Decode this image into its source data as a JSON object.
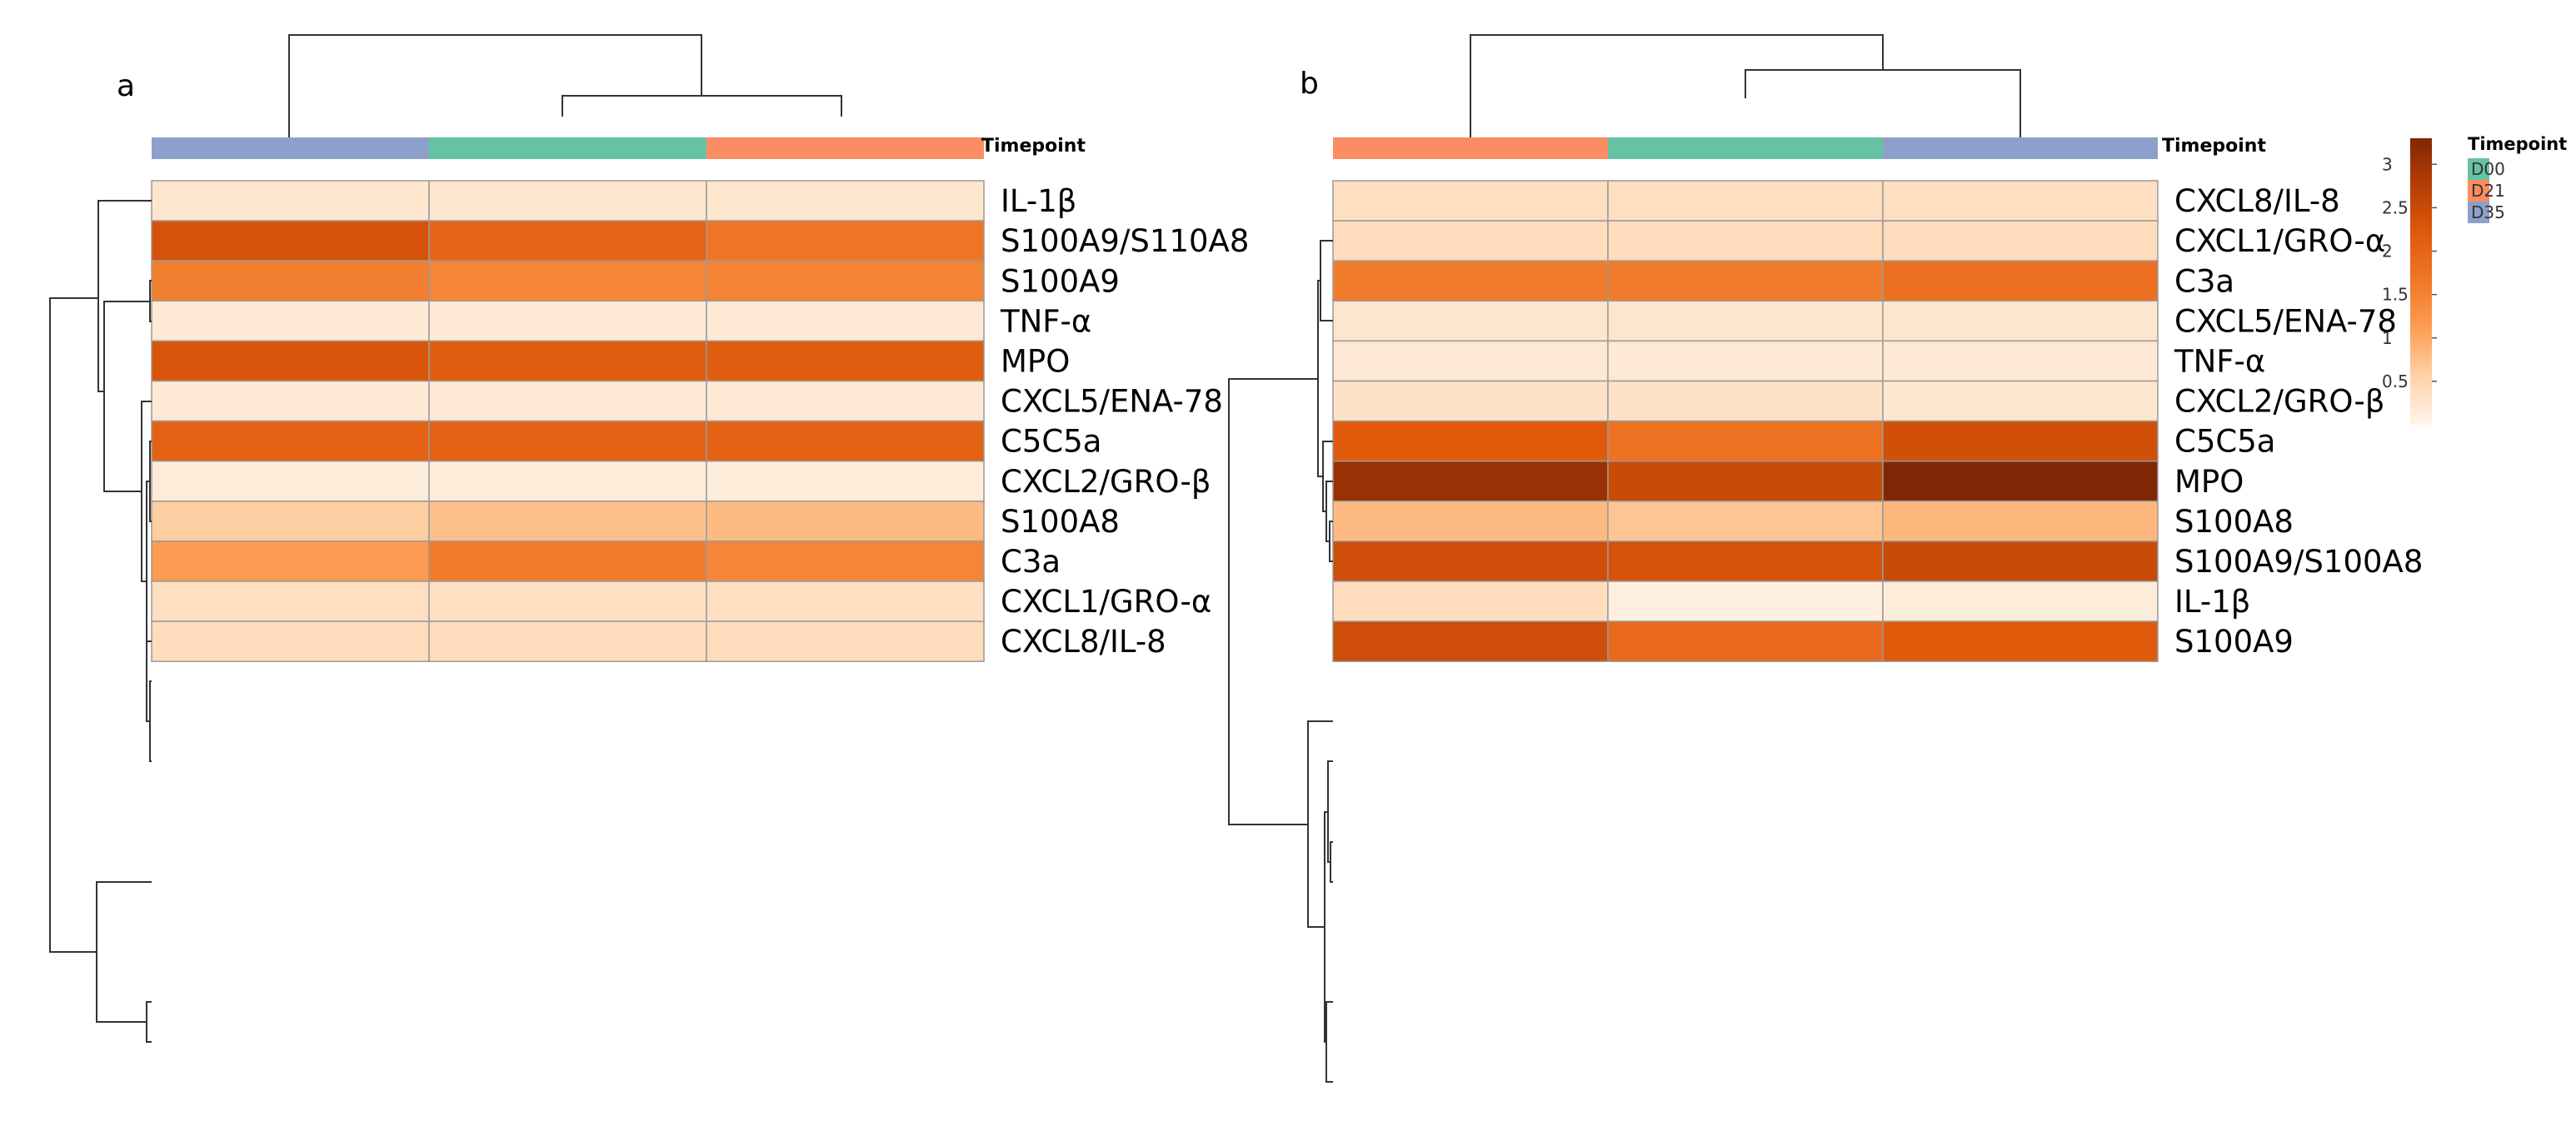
{
  "chart_data": {
    "type": "heatmap",
    "colorscale": [
      "#fff5ec",
      "#fdd3aa",
      "#fd9f55",
      "#f07828",
      "#e05a0c",
      "#b63e05",
      "#7f2704"
    ],
    "colorbar": {
      "min": 0,
      "max": 3.3,
      "ticks": [
        "3",
        "2.5",
        "2",
        "1.5",
        "1",
        "0.5"
      ],
      "tick_values": [
        3,
        2.5,
        2,
        1.5,
        1,
        0.5
      ]
    },
    "annotation_legend": {
      "title": "Timepoint",
      "entries": [
        {
          "label": "D00",
          "color": "#66c2a5"
        },
        {
          "label": "D21",
          "color": "#fc8d62"
        },
        {
          "label": "D35",
          "color": "#8da0cb"
        }
      ]
    },
    "panels": [
      {
        "panel_label": "a",
        "annotation_label": "Timepoint",
        "columns": [
          "D35",
          "D00",
          "D21"
        ],
        "rows": [
          "IL-1β",
          "S100A9/S110A8",
          "S100A9",
          "TNF-α",
          "MPO",
          "CXCL5/ENA-78",
          "C5C5a",
          "CXCL2/GRO-β",
          "S100A8",
          "C3a",
          "CXCL1/GRO-α",
          "CXCL8/IL-8"
        ],
        "values": [
          [
            0.25,
            0.25,
            0.25
          ],
          [
            2.35,
            2.0,
            1.7
          ],
          [
            1.55,
            1.45,
            1.5
          ],
          [
            0.2,
            0.2,
            0.2
          ],
          [
            2.3,
            2.15,
            2.15
          ],
          [
            0.2,
            0.2,
            0.2
          ],
          [
            2.05,
            2.05,
            2.05
          ],
          [
            0.15,
            0.15,
            0.15
          ],
          [
            0.6,
            0.75,
            0.8
          ],
          [
            1.15,
            1.6,
            1.45
          ],
          [
            0.35,
            0.35,
            0.35
          ],
          [
            0.4,
            0.4,
            0.4
          ]
        ]
      },
      {
        "panel_label": "b",
        "annotation_label": "Timepoint",
        "columns": [
          "D21",
          "D00",
          "D35"
        ],
        "rows": [
          "CXCL8/IL-8",
          "CXCL1/GRO-α",
          "C3a",
          "CXCL5/ENA-78",
          "TNF-α",
          "CXCL2/GRO-β",
          "C5C5a",
          "MPO",
          "S100A8",
          "S100A9/S100A8",
          "IL-1β",
          "S100A9"
        ],
        "values": [
          [
            0.35,
            0.35,
            0.35
          ],
          [
            0.4,
            0.4,
            0.4
          ],
          [
            1.6,
            1.6,
            1.8
          ],
          [
            0.25,
            0.25,
            0.25
          ],
          [
            0.2,
            0.2,
            0.2
          ],
          [
            0.3,
            0.3,
            0.25
          ],
          [
            2.2,
            1.75,
            2.4
          ],
          [
            3.05,
            2.5,
            3.3
          ],
          [
            0.8,
            0.7,
            0.85
          ],
          [
            2.45,
            2.35,
            2.5
          ],
          [
            0.4,
            0.1,
            0.15
          ],
          [
            2.45,
            1.9,
            2.2
          ]
        ]
      }
    ]
  }
}
